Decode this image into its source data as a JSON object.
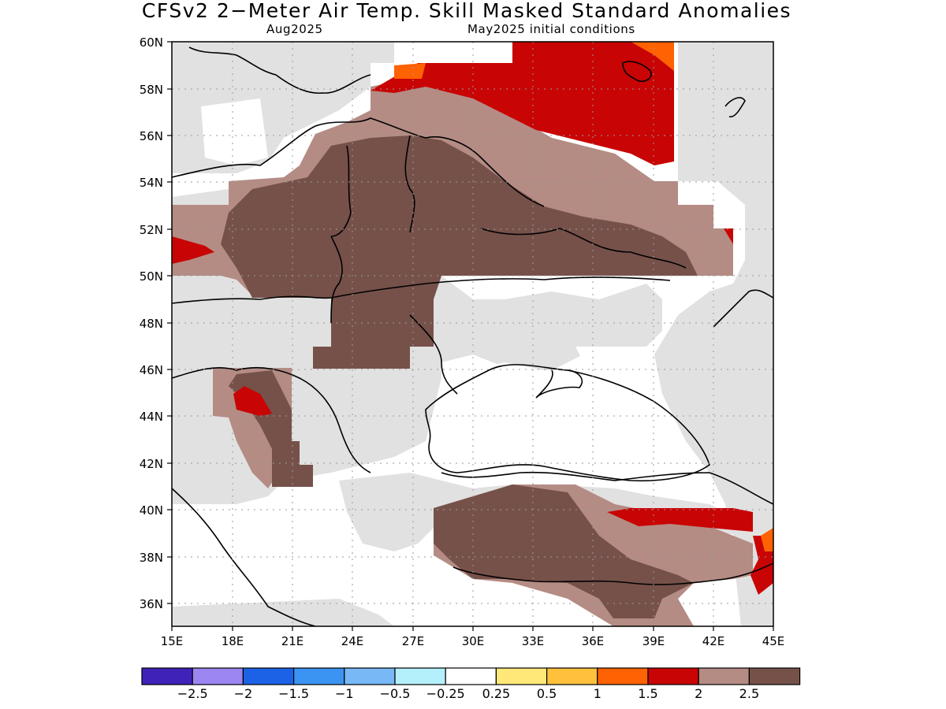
{
  "title": "CFSv2 2−Meter Air Temp. Skill Masked Standard Anomalies",
  "valid_month": "Aug2025",
  "init_conditions": "May2025 initial conditions",
  "lat_labels": [
    "60N",
    "58N",
    "56N",
    "54N",
    "52N",
    "50N",
    "48N",
    "46N",
    "44N",
    "42N",
    "40N",
    "38N",
    "36N"
  ],
  "lon_labels": [
    "15E",
    "18E",
    "21E",
    "24E",
    "27E",
    "30E",
    "33E",
    "36E",
    "39E",
    "42E",
    "45E"
  ],
  "colorbar": {
    "colors": [
      "#3f22b8",
      "#9b86f2",
      "#1c62e6",
      "#3c94f2",
      "#78b8f6",
      "#b4f0fb",
      "#ffffff",
      "#ffe878",
      "#ffc03c",
      "#ff6202",
      "#c80404",
      "#b48c84",
      "#76514a"
    ],
    "labels": [
      "−2.5",
      "−2",
      "−1.5",
      "−1",
      "−0.5",
      "−0.25",
      "0.25",
      "0.5",
      "1",
      "1.5",
      "2",
      "2.5"
    ]
  },
  "colors": {
    "mask_gray": "#e1e1e1",
    "anom_025_05": "#ffffff",
    "anom_15_2": "#ff6202",
    "anom_2_25": "#c80404",
    "anom_25_3": "#b48c84",
    "anom_gt_3": "#76514a"
  }
}
